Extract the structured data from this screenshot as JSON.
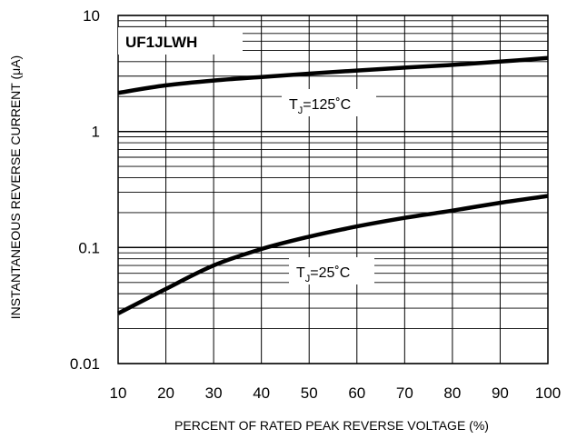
{
  "chart_data": {
    "type": "line",
    "title": "UF1JLWH",
    "xlabel": "PERCENT OF RATED PEAK REVERSE VOLTAGE (%)",
    "ylabel": "INSTANTANEOUS REVERSE CURRENT (μA)",
    "x_scale": "linear",
    "y_scale": "log",
    "xlim": [
      10,
      100
    ],
    "ylim": [
      0.01,
      10
    ],
    "grid": true,
    "x_ticks": [
      "10",
      "20",
      "30",
      "40",
      "50",
      "60",
      "70",
      "80",
      "90",
      "100"
    ],
    "y_ticks": [
      "0.01",
      "0.1",
      "1",
      "10"
    ],
    "series": [
      {
        "name": "TJ=125°C",
        "label": {
          "main": "T",
          "sub": "J",
          "rest": "=125˚C"
        },
        "x": [
          10,
          20,
          30,
          40,
          50,
          60,
          70,
          80,
          90,
          100
        ],
        "y": [
          2.15,
          2.5,
          2.75,
          2.95,
          3.15,
          3.35,
          3.55,
          3.75,
          4.0,
          4.3
        ]
      },
      {
        "name": "TJ=25°C",
        "label": {
          "main": "T",
          "sub": "J",
          "rest": "=25˚C"
        },
        "x": [
          10,
          20,
          30,
          40,
          50,
          60,
          70,
          80,
          90,
          100
        ],
        "y": [
          0.027,
          0.044,
          0.07,
          0.097,
          0.124,
          0.152,
          0.18,
          0.208,
          0.243,
          0.278
        ]
      }
    ]
  }
}
